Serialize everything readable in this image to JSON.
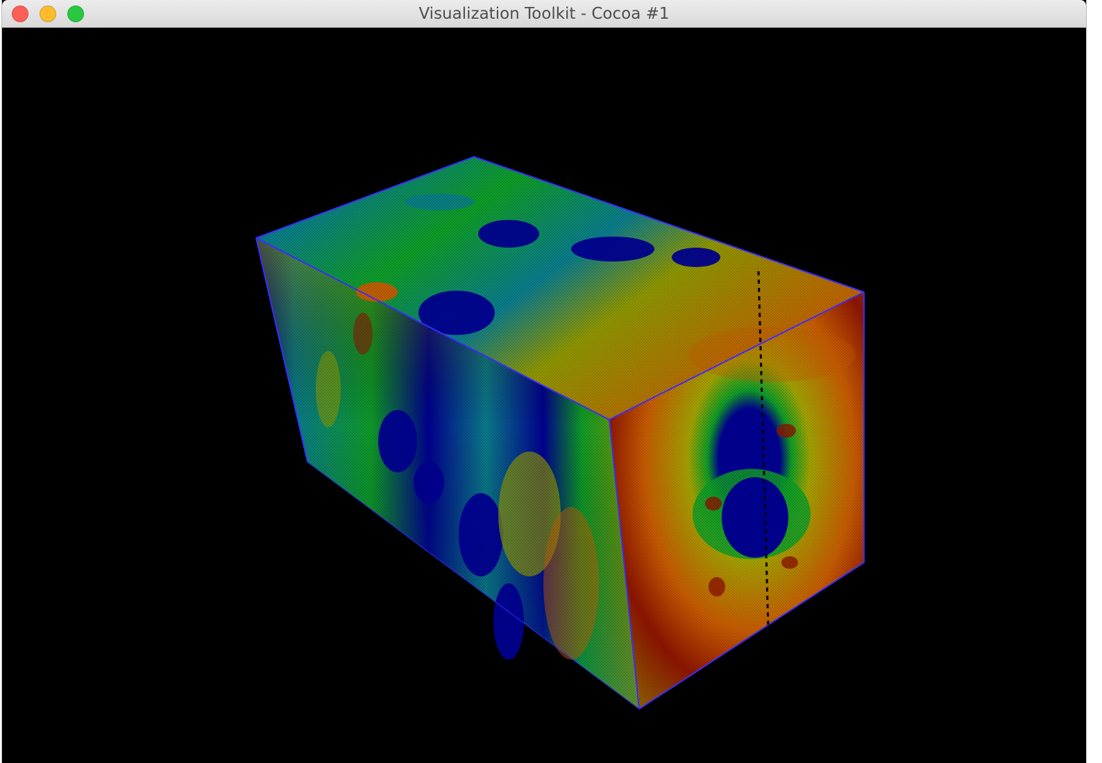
{
  "window": {
    "title": "Visualization Toolkit - Cocoa #1",
    "controls": {
      "close_icon": "close-icon",
      "minimize_icon": "minimize-icon",
      "maximize_icon": "maximize-icon"
    }
  },
  "scene": {
    "object": "volume-rendered box",
    "colormap": "rainbow",
    "background": "#000000",
    "edge_color": "#3a2cff",
    "colors": [
      "#00008f",
      "#0a7a8a",
      "#0e9a26",
      "#8c9400",
      "#c45a00",
      "#8c1400"
    ]
  }
}
